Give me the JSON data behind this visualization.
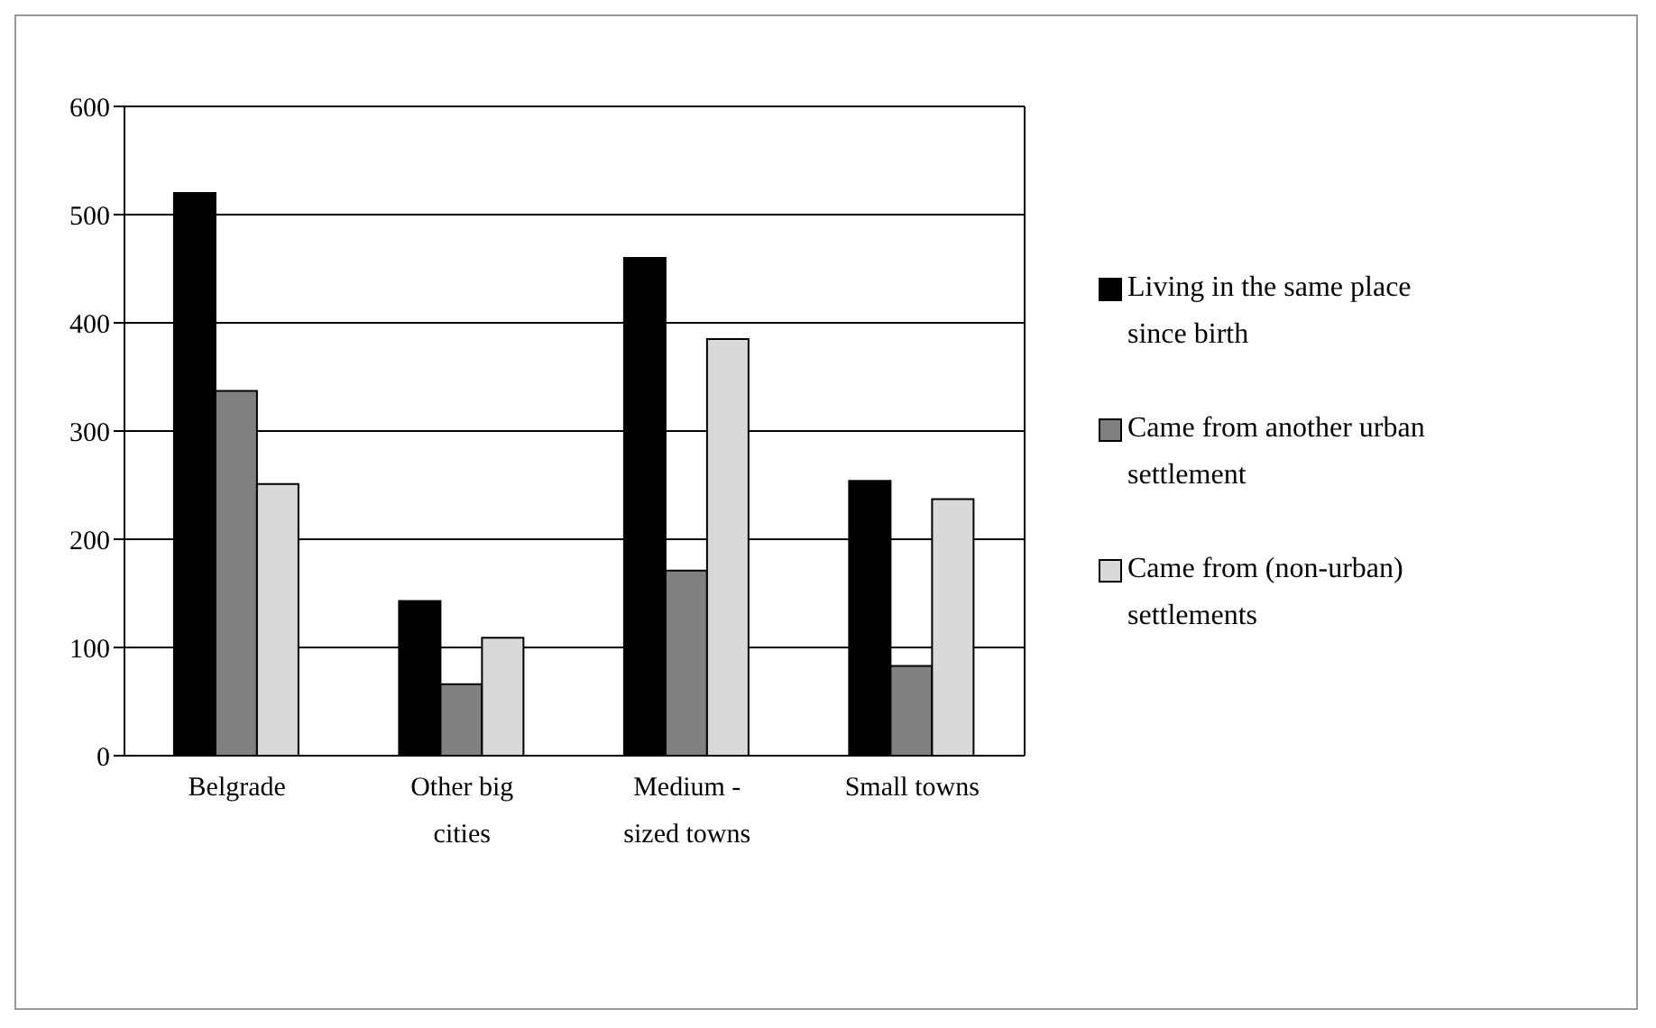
{
  "chart_data": {
    "type": "bar",
    "categories": [
      "Belgrade",
      "Other big cities",
      "Medium - sized towns",
      "Small towns"
    ],
    "series": [
      {
        "name": "Living in the same place since birth",
        "color": "#000000",
        "values": [
          520,
          143,
          460,
          254
        ]
      },
      {
        "name": "Came from another urban settlement",
        "color": "#808080",
        "values": [
          337,
          66,
          171,
          83
        ]
      },
      {
        "name": "Came from (non-urban) settlements",
        "color": "#d9d9d9",
        "values": [
          251,
          109,
          385,
          237
        ]
      }
    ],
    "ylim": [
      0,
      600
    ],
    "yticks": [
      0,
      100,
      200,
      300,
      400,
      500,
      600
    ],
    "grid": "y",
    "legend": "right"
  }
}
